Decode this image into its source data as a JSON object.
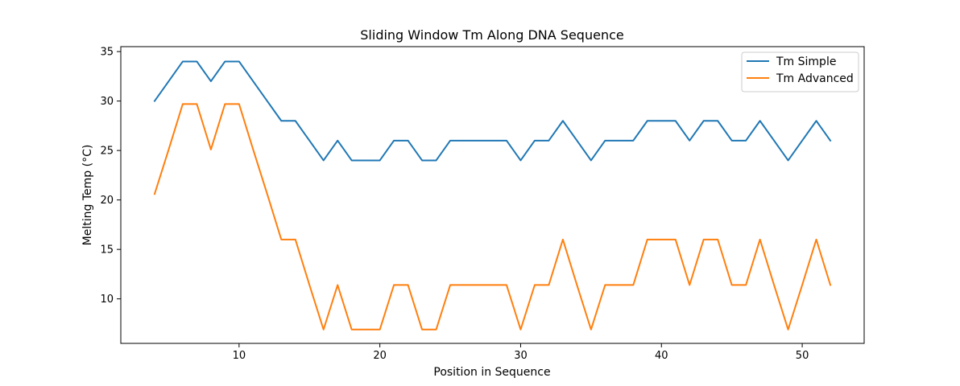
{
  "chart_data": {
    "type": "line",
    "title": "Sliding Window Tm Along DNA Sequence",
    "xlabel": "Position in Sequence",
    "ylabel": "Melting Temp (°C)",
    "xlim": [
      1.6,
      54.4
    ],
    "ylim": [
      5.5,
      35.5
    ],
    "xticks": [
      10,
      20,
      30,
      40,
      50
    ],
    "yticks": [
      10,
      15,
      20,
      25,
      30,
      35
    ],
    "grid": false,
    "legend_position": "top-right",
    "x": [
      4,
      5,
      6,
      7,
      8,
      9,
      10,
      11,
      12,
      13,
      14,
      15,
      16,
      17,
      18,
      19,
      20,
      21,
      22,
      23,
      24,
      25,
      26,
      27,
      28,
      29,
      30,
      31,
      32,
      33,
      34,
      35,
      36,
      37,
      38,
      39,
      40,
      41,
      42,
      43,
      44,
      45,
      46,
      47,
      48,
      49,
      50,
      51,
      52
    ],
    "series": [
      {
        "name": "Tm Simple",
        "color": "#1f77b4",
        "values": [
          30,
          32,
          34,
          34,
          32,
          34,
          34,
          32,
          30,
          28,
          28,
          26,
          24,
          26,
          24,
          24,
          24,
          26,
          26,
          24,
          24,
          26,
          26,
          26,
          26,
          26,
          24,
          26,
          26,
          28,
          26,
          24,
          26,
          26,
          26,
          28,
          28,
          28,
          26,
          28,
          28,
          26,
          26,
          28,
          26,
          24,
          26,
          28,
          26
        ]
      },
      {
        "name": "Tm Advanced",
        "color": "#ff7f0e",
        "values": [
          20.6,
          25.1,
          29.7,
          29.7,
          25.1,
          29.7,
          29.7,
          25.1,
          20.6,
          16.0,
          16.0,
          11.4,
          6.9,
          11.4,
          6.9,
          6.9,
          6.9,
          11.4,
          11.4,
          6.9,
          6.9,
          11.4,
          11.4,
          11.4,
          11.4,
          11.4,
          6.9,
          11.4,
          11.4,
          16.0,
          11.4,
          6.9,
          11.4,
          11.4,
          11.4,
          16.0,
          16.0,
          16.0,
          11.4,
          16.0,
          16.0,
          11.4,
          11.4,
          16.0,
          11.4,
          6.9,
          11.4,
          16.0,
          11.4
        ]
      }
    ]
  }
}
